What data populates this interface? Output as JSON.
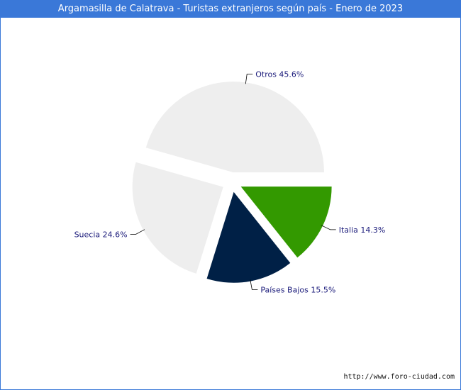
{
  "chart_data": {
    "type": "pie",
    "title": "Argamasilla de Calatrava - Turistas extranjeros según país - Enero de 2023",
    "slices": [
      {
        "name": "Italia",
        "value": 14.3,
        "label": "Italia 14.3%",
        "color": "#339900"
      },
      {
        "name": "Países Bajos",
        "value": 15.5,
        "label": "Países Bajos 15.5%",
        "color": "#002046"
      },
      {
        "name": "Suecia",
        "value": 24.6,
        "label": "Suecia 24.6%",
        "color": "#eeeeee"
      },
      {
        "name": "Otros",
        "value": 45.6,
        "label": "Otros 45.6%",
        "color": "#eeeeee"
      }
    ],
    "exploded": true
  },
  "footer": {
    "url": "http://www.foro-ciudad.com"
  }
}
